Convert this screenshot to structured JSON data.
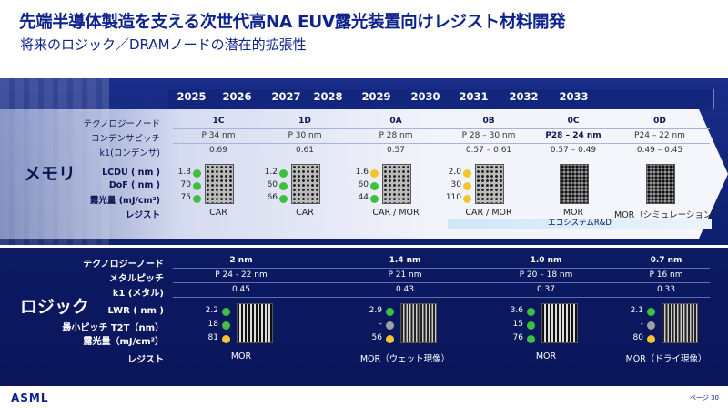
{
  "title": "先端半導体製造を支える次世代高NA EUV露光装置向けレジスト材料開発",
  "subtitle": "将来のロジック／DRAMノードの潜在的拡張性",
  "years": [
    "2025",
    "2026",
    "2027",
    "2028",
    "2029",
    "2030",
    "2031",
    "2032",
    "2033"
  ],
  "memory": {
    "label": "メモリ",
    "row_labels": [
      "テクノロジーノード",
      "コンデンサピッチ",
      "k1(コンデンサ)",
      "LCDU ( nm )",
      "DoF ( nm )",
      "露光量 (mJ/cm²)",
      "レジスト"
    ],
    "nodes": [
      "1C",
      "1D",
      "0A",
      "0B",
      "0C",
      "0D"
    ],
    "pitch": [
      "P 34 nm",
      "P 30 nm",
      "P 28 nm",
      "P 28 – 30 nm",
      "P28 – 24 nm",
      "P24 – 22 nm"
    ],
    "k1": [
      "0.69",
      "0.61",
      "0.57",
      "0.57 – 0.61",
      "0.57 – 0.49",
      "0.49 – 0.45"
    ],
    "metrics": [
      {
        "v": [
          "1.3",
          "70",
          "75"
        ],
        "c": [
          "#3fbf3f",
          "#3fbf3f",
          "#3fbf3f"
        ],
        "resist": "CAR"
      },
      {
        "v": [
          "1.2",
          "60",
          "66"
        ],
        "c": [
          "#3fbf3f",
          "#3fbf3f",
          "#3fbf3f"
        ],
        "resist": "CAR"
      },
      {
        "v": [
          "1.6",
          "60",
          "44"
        ],
        "c": [
          "#f3c531",
          "#3fbf3f",
          "#3fbf3f"
        ],
        "resist": "CAR / MOR"
      },
      {
        "v": [
          "2.0",
          "30",
          "110"
        ],
        "c": [
          "#f3c531",
          "#f3c531",
          "#f3c531"
        ],
        "resist": "CAR / MOR"
      },
      {
        "v": [
          "",
          "",
          ""
        ],
        "c": [],
        "resist": "MOR"
      },
      {
        "v": [
          "",
          "",
          ""
        ],
        "c": [],
        "resist": "MOR（シミュレーション）"
      }
    ],
    "eco": "エコシステムR&D"
  },
  "logic": {
    "label": "ロジック",
    "row_labels": [
      "テクノロジーノード",
      "メタルピッチ",
      "k1 (メタル)",
      "LWR ( nm )",
      "最小ピッチ T2T（nm）",
      "露光量（mJ/cm²）",
      "レジスト"
    ],
    "nodes": [
      "2 nm",
      "1.4 nm",
      "1.0 nm",
      "0.7 nm"
    ],
    "pitch": [
      "P 24 - 22 nm",
      "P 21 nm",
      "P 20 – 18 nm",
      "P 16 nm"
    ],
    "k1": [
      "0.45",
      "0.43",
      "0.37",
      "0.33"
    ],
    "metrics": [
      {
        "v": [
          "2.2",
          "18",
          "81"
        ],
        "c": [
          "#3fbf3f",
          "#3fbf3f",
          "#f3c531"
        ],
        "resist": "MOR"
      },
      {
        "v": [
          "2.9",
          "-",
          "56"
        ],
        "c": [
          "#3fbf3f",
          "#a0a0a0",
          "#f3c531"
        ],
        "resist": "MOR（ウェット現像）"
      },
      {
        "v": [
          "3.6",
          "15",
          "76"
        ],
        "c": [
          "#3fbf3f",
          "#3fbf3f",
          "#3fbf3f"
        ],
        "resist": "MOR"
      },
      {
        "v": [
          "2.1",
          "-",
          "80"
        ],
        "c": [
          "#3fbf3f",
          "#a0a0a0",
          "#f3c531"
        ],
        "resist": "MOR（ドライ現像）"
      }
    ]
  },
  "footer": {
    "logo": "ASML",
    "page": "ページ 30"
  }
}
